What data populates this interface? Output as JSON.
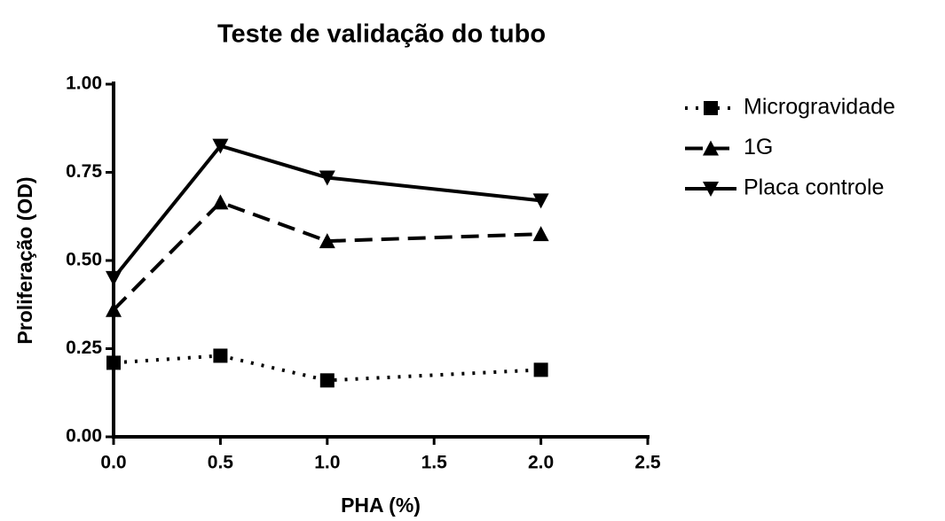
{
  "chart_data": {
    "type": "line",
    "title": "Teste de validação do tubo",
    "xlabel": "PHA (%)",
    "ylabel": "Proliferação (OD)",
    "x": [
      0,
      0.5,
      1,
      2
    ],
    "series": [
      {
        "name": "Microgravidade",
        "color": "#000000",
        "marker": "square",
        "dash": "dotted",
        "values": [
          0.21,
          0.23,
          0.16,
          0.19
        ]
      },
      {
        "name": "1G",
        "color": "#000000",
        "marker": "triangle-up",
        "dash": "dashed",
        "values": [
          0.36,
          0.665,
          0.555,
          0.575
        ]
      },
      {
        "name": "Placa controle",
        "color": "#000000",
        "marker": "triangle-down",
        "dash": "solid",
        "values": [
          0.45,
          0.825,
          0.735,
          0.67
        ]
      }
    ],
    "xlim": [
      0,
      2.5
    ],
    "xticks": [
      {
        "value": 0,
        "label": "0.0"
      },
      0.5,
      {
        "value": 1,
        "label": "1.0"
      },
      1.5,
      {
        "value": 2,
        "label": "2.0"
      },
      2.5
    ],
    "ylim": [
      0,
      1
    ],
    "yticks": [
      {
        "value": 0,
        "label": "0.00"
      },
      0.25,
      {
        "value": 0.5,
        "label": "0.50"
      },
      0.75,
      {
        "value": 1,
        "label": "1.00"
      }
    ],
    "legend": "right"
  }
}
